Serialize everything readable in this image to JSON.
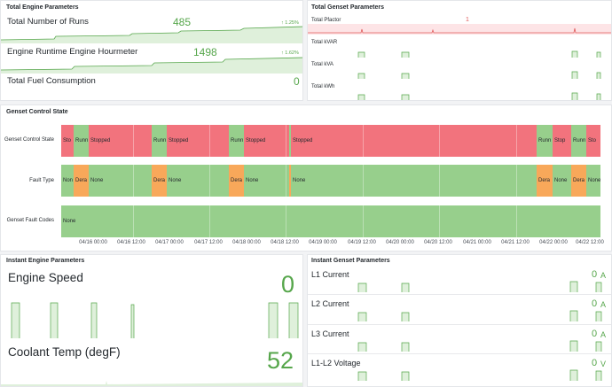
{
  "panels": {
    "engine_params": {
      "title": "Total Engine Parameters",
      "stats": [
        {
          "label": "Total Number of Runs",
          "value": "485",
          "change": "1.25%"
        },
        {
          "label": "Engine Runtime Engine Hourmeter",
          "value": "1498",
          "change": "1.62%"
        },
        {
          "label": "Total Fuel Consumption",
          "value": "0",
          "change": ""
        }
      ]
    },
    "genset_params": {
      "title": "Total Genset Parameters",
      "stats": [
        {
          "label": "Total Pfactor",
          "value": "1"
        },
        {
          "label": "Total kVAR",
          "value": ""
        },
        {
          "label": "Total kVA",
          "value": ""
        },
        {
          "label": "Total kWh",
          "value": ""
        }
      ]
    },
    "control_state": {
      "title": "Genset Control State",
      "rows": [
        {
          "label": "Genset Control State",
          "segments": [
            "Sto",
            "Runn",
            "Stopped",
            "Runn",
            "Stopped",
            "Runn",
            "Stopped",
            "",
            "Stopped",
            "Runn",
            "Stop",
            "Runn",
            "Sto"
          ]
        },
        {
          "label": "Fault Type",
          "segments": [
            "Non",
            "Dera",
            "None",
            "Dera",
            "None",
            "Dera",
            "None",
            "",
            "None",
            "Dera",
            "None",
            "Dera",
            "None"
          ]
        },
        {
          "label": "Genset Fault Codes",
          "segments": [
            "None"
          ]
        }
      ],
      "x_ticks": [
        "04/16 00:00",
        "04/16 12:00",
        "04/17 00:00",
        "04/17 12:00",
        "04/18 00:00",
        "04/18 12:00",
        "04/19 00:00",
        "04/19 12:00",
        "04/20 00:00",
        "04/20 12:00",
        "04/21 00:00",
        "04/21 12:00",
        "04/22 00:00",
        "04/22 12:00"
      ]
    },
    "instant_engine": {
      "title": "Instant Engine Parameters",
      "stats": [
        {
          "label": "Engine Speed",
          "value": "0"
        },
        {
          "label": "Coolant Temp (degF)",
          "value": "52"
        }
      ]
    },
    "instant_genset": {
      "title": "Instant Genset Parameters",
      "stats": [
        {
          "label": "L1 Current",
          "value": "0",
          "unit": "A"
        },
        {
          "label": "L2 Current",
          "value": "0",
          "unit": "A"
        },
        {
          "label": "L3 Current",
          "value": "0",
          "unit": "A"
        },
        {
          "label": "L1-L2 Voltage",
          "value": "0",
          "unit": "V"
        }
      ]
    }
  },
  "colors": {
    "stopped": "#f2737d",
    "running": "#97cf8c",
    "derate": "#f8a85a",
    "value_green": "#56a64b",
    "pfactor_red": "#e05c5c"
  }
}
